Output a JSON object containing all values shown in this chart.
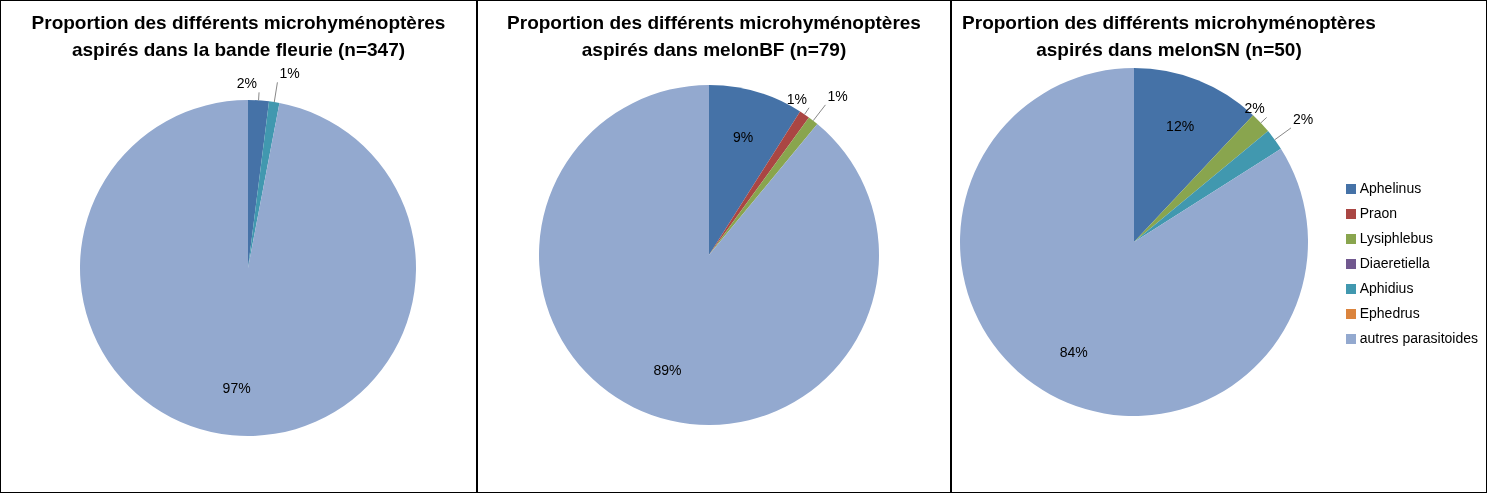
{
  "chart_data": [
    {
      "type": "pie",
      "title": "Proportion des différents microhyménoptères aspirés dans la bande fleurie (n=347)",
      "categories": [
        null,
        null,
        null
      ],
      "values": [
        2,
        1,
        97
      ],
      "value_labels": [
        "2%",
        "1%",
        "97%"
      ],
      "colors": [
        "#4572a7",
        "#4198af",
        "#93a9cf"
      ],
      "legend": false
    },
    {
      "type": "pie",
      "title": "Proportion des différents microhyménoptères aspirés dans melonBF (n=79)",
      "categories": [
        null,
        null,
        null,
        null
      ],
      "values": [
        9,
        1,
        1,
        89
      ],
      "value_labels": [
        "9%",
        "1%",
        "1%",
        "89%"
      ],
      "colors": [
        "#4572a7",
        "#aa4643",
        "#89a54e",
        "#93a9cf"
      ],
      "legend": false
    },
    {
      "type": "pie",
      "title": "Proportion des différents microhyménoptères aspirés dans melonSN (n=50)",
      "categories": [
        "Aphelinus",
        "Praon",
        "Lysiphlebus",
        "Diaeretiella",
        "Aphidius",
        "Ephedrus",
        "autres parasitoides"
      ],
      "values": [
        12,
        0,
        2,
        0,
        2,
        0,
        84
      ],
      "value_labels": [
        "12%",
        null,
        "2%",
        null,
        "2%",
        null,
        "84%"
      ],
      "colors": [
        "#4572a7",
        "#aa4643",
        "#89a54e",
        "#71588f",
        "#4198af",
        "#db843d",
        "#93a9cf"
      ],
      "legend": "right"
    }
  ]
}
